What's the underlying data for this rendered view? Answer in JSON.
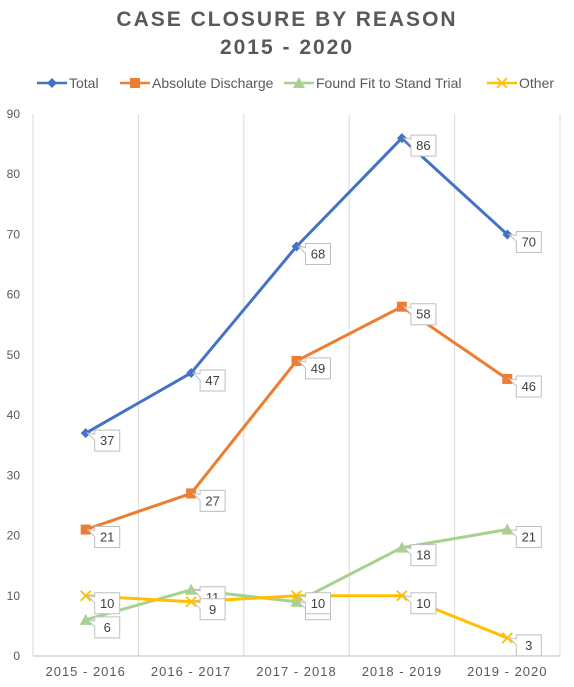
{
  "chart_data": {
    "type": "line",
    "title": [
      "CASE CLOSURE BY REASON",
      "2015 - 2020"
    ],
    "categories": [
      "2015 - 2016",
      "2016 - 2017",
      "2017 - 2018",
      "2018 - 2019",
      "2019 - 2020"
    ],
    "ylim": [
      0,
      90
    ],
    "yticks": [
      0,
      10,
      20,
      30,
      40,
      50,
      60,
      70,
      80,
      90
    ],
    "grid": "vertical",
    "legend_position": "top",
    "series": [
      {
        "name": "Total",
        "color": "#4472C4",
        "marker": "diamond",
        "values": [
          37,
          47,
          68,
          86,
          70
        ]
      },
      {
        "name": "Absolute Discharge",
        "color": "#ED7D31",
        "marker": "square",
        "values": [
          21,
          27,
          49,
          58,
          46
        ]
      },
      {
        "name": "Found Fit to Stand Trial",
        "color": "#A9D18E",
        "marker": "triangle",
        "values": [
          6,
          11,
          9,
          18,
          21
        ]
      },
      {
        "name": "Other",
        "color": "#FFC000",
        "marker": "x",
        "values": [
          10,
          9,
          10,
          10,
          3
        ]
      }
    ]
  }
}
